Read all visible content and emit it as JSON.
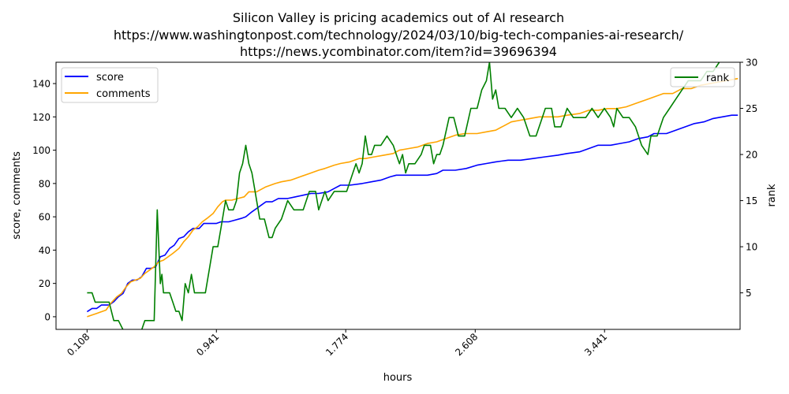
{
  "chart_data": {
    "type": "line",
    "title_lines": [
      "Silicon Valley is pricing academics out of AI research",
      "https://www.washingtonpost.com/technology/2024/03/10/big-tech-companies-ai-research/",
      "https://news.ycombinator.com/item?id=39696394"
    ],
    "xlabel": "hours",
    "ylabel_left": "score, comments",
    "ylabel_right": "rank",
    "xlim": [
      -0.092,
      4.314
    ],
    "ylim_left": [
      -7.6,
      152.8
    ],
    "ylim_right": [
      1.04,
      30
    ],
    "x_ticks": [
      0.108,
      0.941,
      1.774,
      2.608,
      3.441
    ],
    "x_tick_labels": [
      "0.108",
      "0.941",
      "1.774",
      "2.608",
      "3.441"
    ],
    "y_ticks_left": [
      0,
      20,
      40,
      60,
      80,
      100,
      120,
      140
    ],
    "y_tick_labels_left": [
      "0",
      "20",
      "40",
      "60",
      "80",
      "100",
      "120",
      "140"
    ],
    "y_ticks_right": [
      5,
      10,
      15,
      20,
      25,
      30
    ],
    "y_tick_labels_right": [
      "5",
      "10",
      "15",
      "20",
      "25",
      "30"
    ],
    "grid": false,
    "legend_left": {
      "placement": "upper-left",
      "entries": [
        "score",
        "comments"
      ]
    },
    "legend_right": {
      "placement": "upper-right",
      "entries": [
        "rank"
      ]
    },
    "colors": {
      "score": "#0000ff",
      "comments": "#ffa500",
      "rank": "#008000"
    },
    "series": [
      {
        "name": "score",
        "axis": "left",
        "points": [
          [
            0.108,
            3
          ],
          [
            0.14,
            5
          ],
          [
            0.17,
            5
          ],
          [
            0.2,
            7
          ],
          [
            0.25,
            7
          ],
          [
            0.28,
            9
          ],
          [
            0.31,
            12
          ],
          [
            0.34,
            14
          ],
          [
            0.37,
            20
          ],
          [
            0.4,
            22
          ],
          [
            0.43,
            22
          ],
          [
            0.46,
            24
          ],
          [
            0.49,
            29
          ],
          [
            0.52,
            29
          ],
          [
            0.55,
            30
          ],
          [
            0.58,
            36
          ],
          [
            0.61,
            37
          ],
          [
            0.64,
            41
          ],
          [
            0.67,
            43
          ],
          [
            0.7,
            47
          ],
          [
            0.73,
            48
          ],
          [
            0.76,
            51
          ],
          [
            0.79,
            53
          ],
          [
            0.83,
            53
          ],
          [
            0.86,
            56
          ],
          [
            0.9,
            56
          ],
          [
            0.94,
            56
          ],
          [
            0.97,
            57
          ],
          [
            1.02,
            57
          ],
          [
            1.06,
            58
          ],
          [
            1.1,
            59
          ],
          [
            1.13,
            60
          ],
          [
            1.17,
            63
          ],
          [
            1.2,
            65
          ],
          [
            1.23,
            67
          ],
          [
            1.26,
            69
          ],
          [
            1.3,
            69
          ],
          [
            1.34,
            71
          ],
          [
            1.4,
            71
          ],
          [
            1.45,
            72
          ],
          [
            1.5,
            73
          ],
          [
            1.55,
            74
          ],
          [
            1.6,
            74
          ],
          [
            1.66,
            75
          ],
          [
            1.7,
            77
          ],
          [
            1.74,
            79
          ],
          [
            1.8,
            79
          ],
          [
            1.88,
            80
          ],
          [
            1.94,
            81
          ],
          [
            2.0,
            82
          ],
          [
            2.06,
            84
          ],
          [
            2.1,
            85
          ],
          [
            2.2,
            85
          ],
          [
            2.3,
            85
          ],
          [
            2.36,
            86
          ],
          [
            2.4,
            88
          ],
          [
            2.48,
            88
          ],
          [
            2.55,
            89
          ],
          [
            2.62,
            91
          ],
          [
            2.68,
            92
          ],
          [
            2.74,
            93
          ],
          [
            2.82,
            94
          ],
          [
            2.9,
            94
          ],
          [
            2.98,
            95
          ],
          [
            3.06,
            96
          ],
          [
            3.14,
            97
          ],
          [
            3.2,
            98
          ],
          [
            3.28,
            99
          ],
          [
            3.34,
            101
          ],
          [
            3.4,
            103
          ],
          [
            3.48,
            103
          ],
          [
            3.54,
            104
          ],
          [
            3.6,
            105
          ],
          [
            3.66,
            107
          ],
          [
            3.72,
            108
          ],
          [
            3.76,
            110
          ],
          [
            3.84,
            110
          ],
          [
            3.9,
            112
          ],
          [
            3.96,
            114
          ],
          [
            4.02,
            116
          ],
          [
            4.08,
            117
          ],
          [
            4.14,
            119
          ],
          [
            4.2,
            120
          ],
          [
            4.26,
            121
          ],
          [
            4.3,
            121
          ]
        ]
      },
      {
        "name": "comments",
        "axis": "left",
        "points": [
          [
            0.108,
            0
          ],
          [
            0.14,
            1
          ],
          [
            0.17,
            2
          ],
          [
            0.2,
            3
          ],
          [
            0.23,
            4
          ],
          [
            0.26,
            8
          ],
          [
            0.3,
            12
          ],
          [
            0.33,
            14
          ],
          [
            0.36,
            18
          ],
          [
            0.39,
            21
          ],
          [
            0.42,
            22
          ],
          [
            0.45,
            23
          ],
          [
            0.48,
            26
          ],
          [
            0.51,
            28
          ],
          [
            0.54,
            30
          ],
          [
            0.57,
            33
          ],
          [
            0.6,
            34
          ],
          [
            0.63,
            36
          ],
          [
            0.66,
            38
          ],
          [
            0.7,
            41
          ],
          [
            0.73,
            45
          ],
          [
            0.76,
            48
          ],
          [
            0.79,
            52
          ],
          [
            0.82,
            54
          ],
          [
            0.85,
            57
          ],
          [
            0.88,
            59
          ],
          [
            0.92,
            62
          ],
          [
            0.95,
            66
          ],
          [
            0.98,
            69
          ],
          [
            1.0,
            70
          ],
          [
            1.04,
            70
          ],
          [
            1.08,
            71
          ],
          [
            1.12,
            72
          ],
          [
            1.15,
            75
          ],
          [
            1.2,
            75
          ],
          [
            1.26,
            78
          ],
          [
            1.32,
            80
          ],
          [
            1.36,
            81
          ],
          [
            1.42,
            82
          ],
          [
            1.48,
            84
          ],
          [
            1.54,
            86
          ],
          [
            1.6,
            88
          ],
          [
            1.64,
            89
          ],
          [
            1.7,
            91
          ],
          [
            1.74,
            92
          ],
          [
            1.8,
            93
          ],
          [
            1.86,
            95
          ],
          [
            1.9,
            95
          ],
          [
            1.96,
            96
          ],
          [
            2.02,
            97
          ],
          [
            2.08,
            98
          ],
          [
            2.12,
            100
          ],
          [
            2.18,
            101
          ],
          [
            2.24,
            102
          ],
          [
            2.3,
            104
          ],
          [
            2.36,
            105
          ],
          [
            2.42,
            107
          ],
          [
            2.48,
            109
          ],
          [
            2.54,
            110
          ],
          [
            2.62,
            110
          ],
          [
            2.68,
            111
          ],
          [
            2.74,
            112
          ],
          [
            2.8,
            115
          ],
          [
            2.84,
            117
          ],
          [
            2.9,
            118
          ],
          [
            2.96,
            119
          ],
          [
            3.02,
            120
          ],
          [
            3.08,
            120
          ],
          [
            3.14,
            120
          ],
          [
            3.2,
            121
          ],
          [
            3.28,
            122
          ],
          [
            3.34,
            124
          ],
          [
            3.4,
            124
          ],
          [
            3.46,
            125
          ],
          [
            3.52,
            125
          ],
          [
            3.58,
            126
          ],
          [
            3.64,
            128
          ],
          [
            3.7,
            130
          ],
          [
            3.76,
            132
          ],
          [
            3.82,
            134
          ],
          [
            3.88,
            134
          ],
          [
            3.94,
            137
          ],
          [
            4.0,
            137
          ],
          [
            4.06,
            139
          ],
          [
            4.12,
            140
          ],
          [
            4.18,
            141
          ],
          [
            4.24,
            142
          ],
          [
            4.3,
            143
          ]
        ]
      },
      {
        "name": "rank",
        "axis": "right",
        "points": [
          [
            0.108,
            5
          ],
          [
            0.14,
            5
          ],
          [
            0.16,
            4
          ],
          [
            0.22,
            4
          ],
          [
            0.25,
            4
          ],
          [
            0.28,
            2
          ],
          [
            0.31,
            2
          ],
          [
            0.34,
            1
          ],
          [
            0.4,
            1
          ],
          [
            0.46,
            1
          ],
          [
            0.48,
            2
          ],
          [
            0.54,
            2
          ],
          [
            0.56,
            14
          ],
          [
            0.58,
            6
          ],
          [
            0.59,
            7
          ],
          [
            0.6,
            5
          ],
          [
            0.64,
            5
          ],
          [
            0.66,
            4
          ],
          [
            0.68,
            3
          ],
          [
            0.7,
            3
          ],
          [
            0.72,
            2
          ],
          [
            0.74,
            6
          ],
          [
            0.76,
            5
          ],
          [
            0.78,
            7
          ],
          [
            0.8,
            5
          ],
          [
            0.87,
            5
          ],
          [
            0.9,
            8
          ],
          [
            0.92,
            10
          ],
          [
            0.95,
            10
          ],
          [
            0.97,
            12
          ],
          [
            0.99,
            14
          ],
          [
            1.0,
            15
          ],
          [
            1.02,
            14
          ],
          [
            1.05,
            14
          ],
          [
            1.07,
            15
          ],
          [
            1.09,
            18
          ],
          [
            1.11,
            19
          ],
          [
            1.13,
            21
          ],
          [
            1.15,
            19
          ],
          [
            1.17,
            18
          ],
          [
            1.19,
            16
          ],
          [
            1.22,
            13
          ],
          [
            1.25,
            13
          ],
          [
            1.28,
            11
          ],
          [
            1.3,
            11
          ],
          [
            1.32,
            12
          ],
          [
            1.36,
            13
          ],
          [
            1.4,
            15
          ],
          [
            1.44,
            14
          ],
          [
            1.5,
            14
          ],
          [
            1.54,
            16
          ],
          [
            1.58,
            16
          ],
          [
            1.6,
            14
          ],
          [
            1.64,
            16
          ],
          [
            1.66,
            15
          ],
          [
            1.7,
            16
          ],
          [
            1.78,
            16
          ],
          [
            1.82,
            18
          ],
          [
            1.84,
            19
          ],
          [
            1.86,
            18
          ],
          [
            1.88,
            19
          ],
          [
            1.9,
            22
          ],
          [
            1.92,
            20
          ],
          [
            1.94,
            20
          ],
          [
            1.96,
            21
          ],
          [
            2.0,
            21
          ],
          [
            2.04,
            22
          ],
          [
            2.08,
            21
          ],
          [
            2.1,
            20
          ],
          [
            2.12,
            19
          ],
          [
            2.14,
            20
          ],
          [
            2.16,
            18
          ],
          [
            2.18,
            19
          ],
          [
            2.22,
            19
          ],
          [
            2.26,
            20
          ],
          [
            2.28,
            21
          ],
          [
            2.32,
            21
          ],
          [
            2.34,
            19
          ],
          [
            2.36,
            20
          ],
          [
            2.38,
            20
          ],
          [
            2.4,
            21
          ],
          [
            2.44,
            24
          ],
          [
            2.47,
            24
          ],
          [
            2.5,
            22
          ],
          [
            2.54,
            22
          ],
          [
            2.58,
            25
          ],
          [
            2.62,
            25
          ],
          [
            2.65,
            27
          ],
          [
            2.68,
            28
          ],
          [
            2.7,
            30
          ],
          [
            2.72,
            26
          ],
          [
            2.74,
            27
          ],
          [
            2.76,
            25
          ],
          [
            2.8,
            25
          ],
          [
            2.84,
            24
          ],
          [
            2.88,
            25
          ],
          [
            2.92,
            24
          ],
          [
            2.96,
            22
          ],
          [
            3.0,
            22
          ],
          [
            3.04,
            24
          ],
          [
            3.06,
            25
          ],
          [
            3.1,
            25
          ],
          [
            3.12,
            23
          ],
          [
            3.16,
            23
          ],
          [
            3.2,
            25
          ],
          [
            3.24,
            24
          ],
          [
            3.28,
            24
          ],
          [
            3.32,
            24
          ],
          [
            3.36,
            25
          ],
          [
            3.4,
            24
          ],
          [
            3.44,
            25
          ],
          [
            3.48,
            24
          ],
          [
            3.5,
            23
          ],
          [
            3.52,
            25
          ],
          [
            3.56,
            24
          ],
          [
            3.6,
            24
          ],
          [
            3.64,
            23
          ],
          [
            3.68,
            21
          ],
          [
            3.72,
            20
          ],
          [
            3.74,
            22
          ],
          [
            3.78,
            22
          ],
          [
            3.82,
            24
          ],
          [
            3.86,
            25
          ],
          [
            3.9,
            26
          ],
          [
            3.94,
            27
          ],
          [
            3.98,
            28
          ],
          [
            4.02,
            28
          ],
          [
            4.06,
            28
          ],
          [
            4.1,
            29
          ],
          [
            4.14,
            29
          ],
          [
            4.18,
            30
          ]
        ]
      }
    ]
  }
}
